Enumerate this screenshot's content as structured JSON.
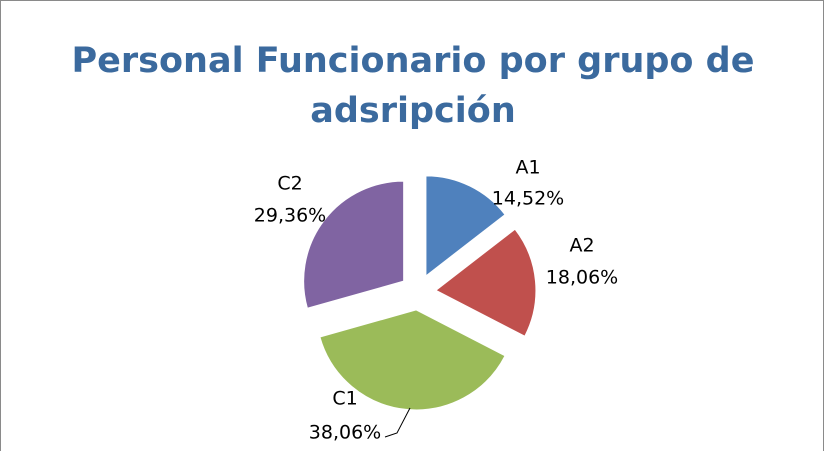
{
  "chart_data": {
    "type": "pie",
    "title": "Personal Funcionario por grupo de adsripción",
    "categories": [
      "A1",
      "A2",
      "C1",
      "C2"
    ],
    "values": [
      14.52,
      18.06,
      38.06,
      29.36
    ],
    "value_labels": [
      "14,52%",
      "18,06%",
      "38,06%",
      "29,36%"
    ],
    "colors": [
      "#4f81bd",
      "#c0504d",
      "#9bbb59",
      "#8064a2"
    ],
    "exploded": true
  }
}
